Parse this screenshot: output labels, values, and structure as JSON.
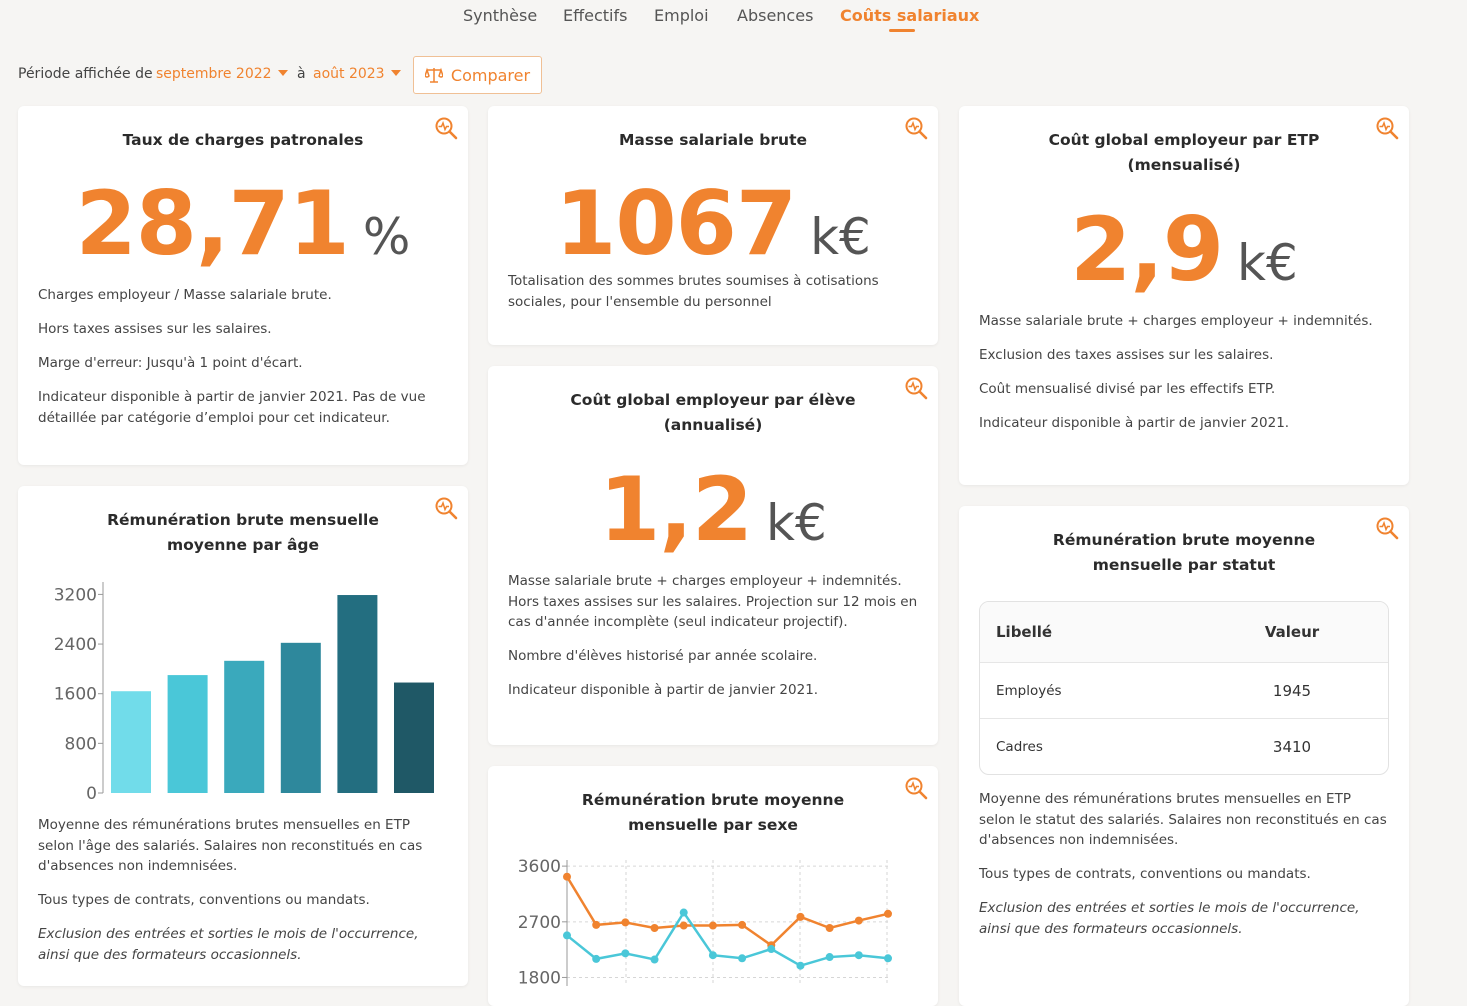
{
  "nav": {
    "tabs": [
      {
        "label": "Synthèse",
        "active": false
      },
      {
        "label": "Effectifs",
        "active": false
      },
      {
        "label": "Emploi",
        "active": false
      },
      {
        "label": "Absences",
        "active": false
      },
      {
        "label": "Coûts salariaux",
        "active": true
      }
    ]
  },
  "period": {
    "label": "Période affichée de",
    "from": "septembre 2022",
    "sep": "à",
    "to": "août 2023",
    "compare_label": "Comparer"
  },
  "colors": {
    "accent": "#f0832f"
  },
  "icons": {
    "zoom": "zoom-chart-icon",
    "compare": "balance-scale-icon"
  },
  "cards": {
    "taux": {
      "title": "Taux de charges patronales",
      "value": "28,71",
      "unit": "%",
      "desc": [
        "Charges employeur / Masse salariale brute.",
        "Hors taxes assises sur les salaires.",
        "Marge d'erreur: Jusqu'à 1 point d'écart.",
        "Indicateur disponible à partir de janvier 2021. Pas de vue détaillée par catégorie d’emploi pour cet indicateur."
      ]
    },
    "masse": {
      "title": "Masse salariale brute",
      "value": "1067",
      "unit": "k€",
      "desc": [
        "Totalisation des sommes brutes soumises à cotisations sociales, pour l'ensemble du personnel"
      ]
    },
    "cout_etp": {
      "title_line1": "Coût global employeur par ETP",
      "title_line2": "(mensualisé)",
      "value": "2,9",
      "unit": "k€",
      "desc": [
        "Masse salariale brute + charges employeur + indemnités.",
        "Exclusion des taxes assises sur les salaires.",
        "Coût mensualisé divisé par les effectifs ETP.",
        "Indicateur disponible à partir de janvier 2021."
      ]
    },
    "cout_eleve": {
      "title_line1": "Coût global employeur par élève",
      "title_line2": "(annualisé)",
      "value": "1,2",
      "unit": "k€",
      "desc": [
        "Masse salariale brute + charges employeur + indemnités. Hors taxes assises sur les salaires. Projection sur 12 mois en cas d'année incomplète (seul indicateur projectif).",
        "Nombre d'élèves historisé par année scolaire.",
        "Indicateur disponible à partir de janvier 2021."
      ]
    },
    "age": {
      "title_line1": "Rémunération brute mensuelle",
      "title_line2": "moyenne par âge",
      "desc": [
        "Moyenne des rémunérations brutes mensuelles en ETP selon l'âge des salariés. Salaires non reconstitués en cas d'absences non indemnisées.",
        "Tous types de contrats, conventions ou mandats."
      ],
      "desc_italic": "Exclusion des entrées et sorties le mois de l'occurrence, ainsi que des formateurs occasionnels."
    },
    "sexe": {
      "title_line1": "Rémunération brute moyenne",
      "title_line2": "mensuelle par sexe"
    },
    "statut": {
      "title_line1": "Rémunération brute moyenne",
      "title_line2": "mensuelle par statut",
      "table": {
        "headers": [
          "Libellé",
          "Valeur"
        ],
        "rows": [
          {
            "label": "Employés",
            "value": "1945"
          },
          {
            "label": "Cadres",
            "value": "3410"
          }
        ]
      },
      "desc": [
        "Moyenne des rémunérations brutes mensuelles en ETP selon le statut des salariés. Salaires non reconstitués en cas d'absences non indemnisées.",
        "Tous types de contrats, conventions ou mandats."
      ],
      "desc_italic": "Exclusion des entrées et sorties le mois de l'occurrence, ainsi que des formateurs occasionnels."
    }
  },
  "chart_data": [
    {
      "type": "bar",
      "yticks": [
        "0",
        "800",
        "1600",
        "2400",
        "3200"
      ],
      "ylim": [
        0,
        3400
      ],
      "values": [
        1640,
        1900,
        2130,
        2420,
        3190,
        1780
      ],
      "colors": [
        "#71dcea",
        "#4ac7d8",
        "#3aa9bc",
        "#2e889c",
        "#236e80",
        "#1f5866"
      ],
      "grid": false
    },
    {
      "type": "line",
      "yticks": [
        "1800",
        "2700",
        "3600"
      ],
      "ylim": [
        1500,
        3700
      ],
      "grid": true,
      "series": [
        {
          "color": "#f0832f",
          "values": [
            3430,
            2650,
            2690,
            2600,
            2640,
            2640,
            2650,
            2320,
            2780,
            2600,
            2720,
            2830
          ]
        },
        {
          "color": "#4ac7d8",
          "values": [
            2480,
            2100,
            2190,
            2090,
            2850,
            2160,
            2110,
            2260,
            1990,
            2130,
            2160,
            2110
          ]
        }
      ]
    }
  ]
}
